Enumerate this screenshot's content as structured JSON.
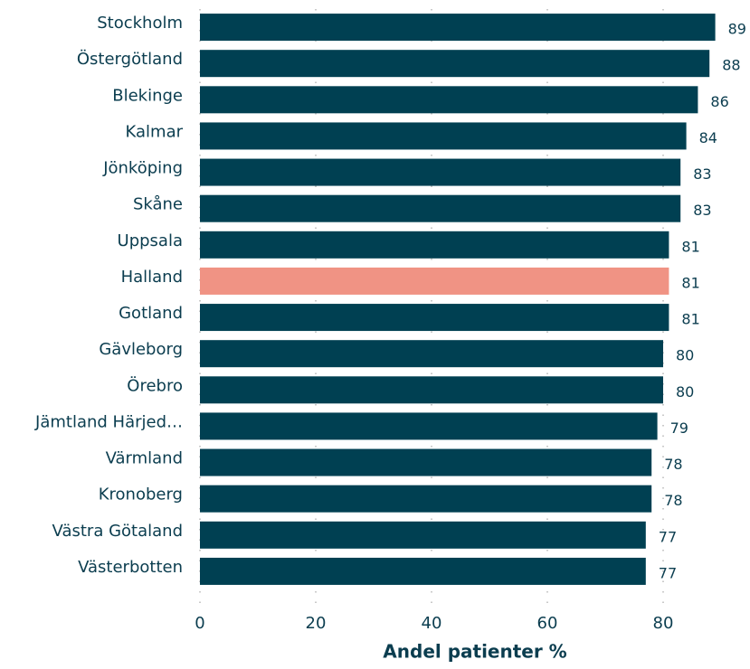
{
  "chart_data": {
    "type": "barh",
    "categories": [
      "Stockholm",
      "Östergötland",
      "Blekinge",
      "Kalmar",
      "Jönköping",
      "Skåne",
      "Uppsala",
      "Halland",
      "Gotland",
      "Gävleborg",
      "Örebro",
      "Jämtland Härjed…",
      "Värmland",
      "Kronoberg",
      "Västra Götaland",
      "Västerbotten"
    ],
    "values": [
      89,
      88,
      86,
      84,
      83,
      83,
      81,
      81,
      81,
      80,
      80,
      79,
      78,
      78,
      77,
      77
    ],
    "colors": [
      "#004052",
      "#004052",
      "#004052",
      "#004052",
      "#004052",
      "#004052",
      "#004052",
      "#f09384",
      "#004052",
      "#004052",
      "#004052",
      "#004052",
      "#004052",
      "#004052",
      "#004052",
      "#004052"
    ],
    "xlabel": "Andel patienter %",
    "xlim": [
      0,
      95
    ],
    "xticks": [
      0,
      20,
      40,
      60,
      80
    ],
    "grid": true
  }
}
